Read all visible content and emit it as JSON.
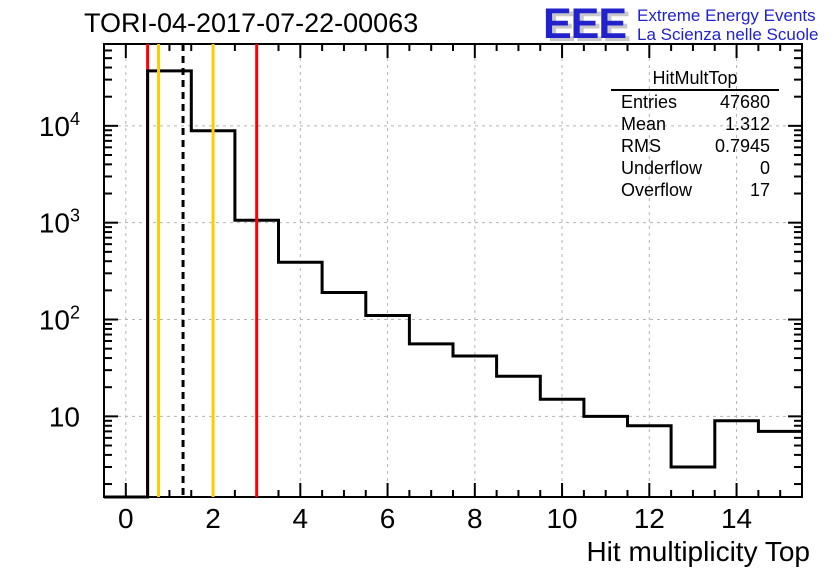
{
  "header": {
    "title": "TORI-04-2017-07-22-00063"
  },
  "logo": {
    "letters": "EEE",
    "line1": "Extreme Energy Events",
    "line2": "La Scienza nelle Scuole",
    "blue": "#2222cc",
    "shadow": "#c8c8c8"
  },
  "stats": {
    "title": "HitMultTop",
    "rows": [
      {
        "label": "Entries",
        "value": "47680"
      },
      {
        "label": "Mean",
        "value": "1.312"
      },
      {
        "label": "RMS",
        "value": "0.7945"
      },
      {
        "label": "Underflow",
        "value": "0"
      },
      {
        "label": "Overflow",
        "value": "17"
      }
    ]
  },
  "chart_data": {
    "type": "bar",
    "subtype": "step-histogram",
    "title": "TORI-04-2017-07-22-00063",
    "xlabel": "Hit multiplicity Top",
    "ylabel": "",
    "yscale": "log",
    "grid": true,
    "bin_centers": [
      0,
      1,
      2,
      3,
      4,
      5,
      6,
      7,
      8,
      9,
      10,
      11,
      12,
      13,
      14,
      15
    ],
    "values": [
      0,
      36900,
      8900,
      1060,
      390,
      190,
      110,
      56,
      42,
      26,
      15,
      10,
      8,
      3,
      9,
      7
    ],
    "bin_width": 1,
    "xlim": [
      -0.5,
      15.5
    ],
    "ylim": [
      1.47,
      70000
    ],
    "x_major_ticks": [
      0,
      2,
      4,
      6,
      8,
      10,
      12,
      14
    ],
    "x_minor_step": 0.5,
    "y_major_ticks": [
      10,
      100,
      1000,
      10000
    ],
    "y_tick_labels": [
      "10",
      "10^2",
      "10^3",
      "10^4"
    ],
    "line_color": "#000000",
    "grid_color": "#b5b5b5",
    "marker_lines": [
      {
        "x": 0.5,
        "color": "#ff0000",
        "style": "solid",
        "behind_histogram": true
      },
      {
        "x": 0.75,
        "color": "#ffcc00",
        "style": "solid"
      },
      {
        "x": 1.312,
        "color": "#000000",
        "style": "dashed"
      },
      {
        "x": 2,
        "color": "#ffcc00",
        "style": "solid"
      },
      {
        "x": 3,
        "color": "#ff0000",
        "style": "solid"
      }
    ]
  }
}
